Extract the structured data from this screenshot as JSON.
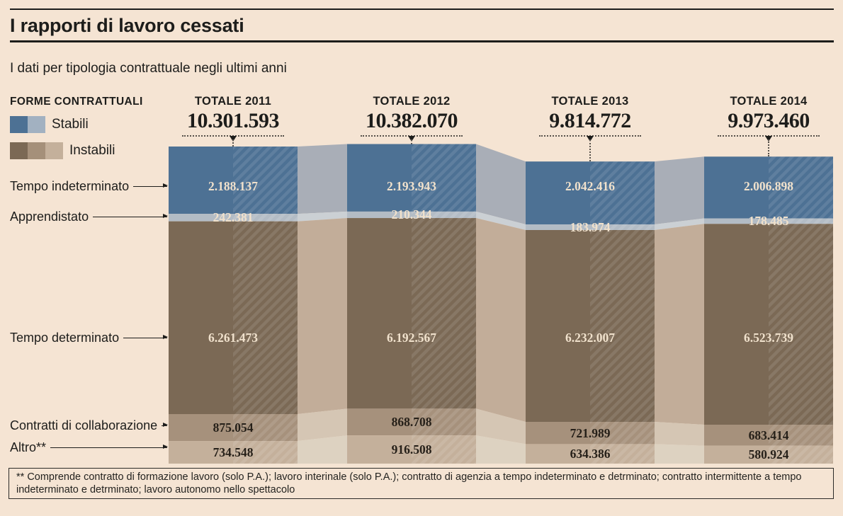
{
  "header": {
    "title": "I rapporti di lavoro cessati",
    "subtitle": "I dati per tipologia contrattuale negli ultimi anni"
  },
  "legend": {
    "title": "FORME CONTRATTUALI",
    "items": [
      {
        "label": "Stabili",
        "colors": [
          "#4d7194",
          "#a2b1c1"
        ]
      },
      {
        "label": "Instabili",
        "colors": [
          "#7b6955",
          "#a5907a",
          "#c4b09b"
        ]
      }
    ]
  },
  "footnote": "** Comprende contratto di formazione lavoro (solo P.A.); lavoro interinale (solo P.A.); contratto di agenzia a tempo indeterminato e detrminato; contratto intermittente a tempo indeterminato e detrminato; lavoro autonomo nello spettacolo",
  "colors": {
    "background": "#f5e4d3",
    "text": "#1d1d1b",
    "value_label_light": "#f0e1cc",
    "value_label_dark": "#262019"
  },
  "chart_data": {
    "type": "bar",
    "variant": "stacked-flow-columns",
    "grid": false,
    "legend_position": "top-left",
    "categories": [
      "TOTALE 2011",
      "TOTALE 2012",
      "TOTALE 2013",
      "TOTALE 2014"
    ],
    "totals": {
      "values": [
        10301593,
        10382070,
        9814772,
        9973460
      ],
      "labels": [
        "10.301.593",
        "10.382.070",
        "9.814.772",
        "9.973.460"
      ]
    },
    "series": [
      {
        "name": "Tempo indeterminato",
        "group": "Stabili",
        "values": [
          2188137,
          2193943,
          2042416,
          2006898
        ],
        "labels": [
          "2.188.137",
          "2.193.943",
          "2.042.416",
          "2.006.898"
        ],
        "color": "#4d7194",
        "connector_color": "#a9aeb7",
        "value_label_style": "light"
      },
      {
        "name": "Apprendistato",
        "group": "Stabili",
        "values": [
          242381,
          210344,
          183974,
          178485
        ],
        "labels": [
          "242.381",
          "210.344",
          "183.974",
          "178.485"
        ],
        "color": "#b3bcc5",
        "connector_color": "#cbd0d4",
        "value_label_style": "light"
      },
      {
        "name": "Tempo determinato",
        "group": "Instabili",
        "values": [
          6261473,
          6192567,
          6232007,
          6523739
        ],
        "labels": [
          "6.261.473",
          "6.192.567",
          "6.232.007",
          "6.523.739"
        ],
        "color": "#7b6955",
        "connector_color": "#c2ad99",
        "value_label_style": "light"
      },
      {
        "name": "Contratti di collaborazione",
        "group": "Instabili",
        "values": [
          875054,
          868708,
          721989,
          683414
        ],
        "labels": [
          "875.054",
          "868.708",
          "721.989",
          "683.414"
        ],
        "color": "#a6917c",
        "connector_color": "#d5c6b4",
        "value_label_style": "dark"
      },
      {
        "name": "Altro**",
        "group": "Instabili",
        "values": [
          734548,
          916508,
          634386,
          580924
        ],
        "labels": [
          "734.548",
          "916.508",
          "634.386",
          "580.924"
        ],
        "color": "#c4b09b",
        "connector_color": "#ddd2c1",
        "value_label_style": "dark"
      }
    ]
  }
}
